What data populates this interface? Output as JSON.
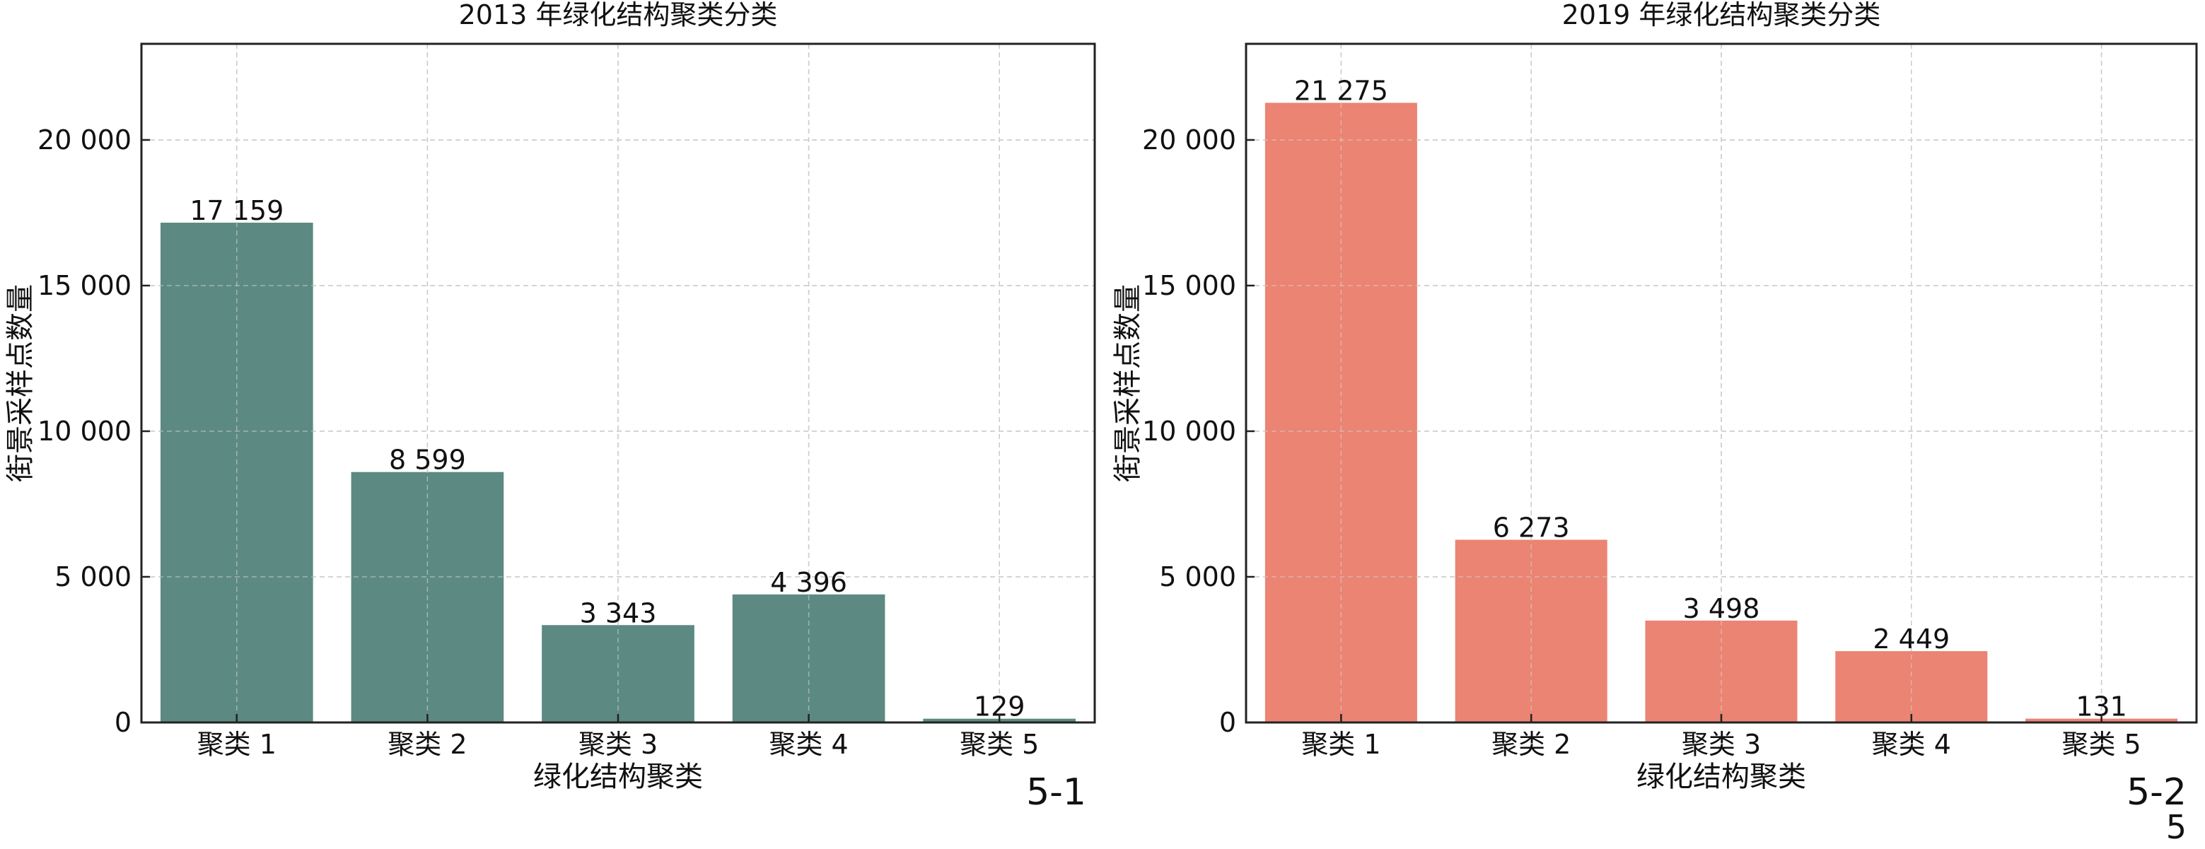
{
  "chart_data": [
    {
      "type": "bar",
      "title": "2013 年绿化结构聚类分类",
      "xlabel": "绿化结构聚类",
      "ylabel": "街景采样点数量",
      "categories": [
        "聚类 1",
        "聚类 2",
        "聚类 3",
        "聚类 4",
        "聚类 5"
      ],
      "values": [
        17159,
        8599,
        3343,
        4396,
        129
      ],
      "value_labels": [
        "17 159",
        "8 599",
        "3 343",
        "4 396",
        "129"
      ],
      "yticks": [
        0,
        5000,
        10000,
        15000,
        20000
      ],
      "ytick_labels": [
        "0",
        "5 000",
        "10 000",
        "15 000",
        "20 000"
      ],
      "ylim": [
        0,
        23300
      ],
      "grid": true,
      "bar_color": "#5c8a82",
      "panel_label": "5-1"
    },
    {
      "type": "bar",
      "title": "2019 年绿化结构聚类分类",
      "xlabel": "绿化结构聚类",
      "ylabel": "街景采样点数量",
      "categories": [
        "聚类 1",
        "聚类 2",
        "聚类 3",
        "聚类 4",
        "聚类 5"
      ],
      "values": [
        21275,
        6273,
        3498,
        2449,
        131
      ],
      "value_labels": [
        "21 275",
        "6 273",
        "3 498",
        "2 449",
        "131"
      ],
      "yticks": [
        0,
        5000,
        10000,
        15000,
        20000
      ],
      "ytick_labels": [
        "0",
        "5 000",
        "10 000",
        "15 000",
        "20 000"
      ],
      "ylim": [
        0,
        23300
      ],
      "grid": true,
      "bar_color": "#eb8472",
      "panel_label": "5-2"
    }
  ],
  "page_number": "5"
}
